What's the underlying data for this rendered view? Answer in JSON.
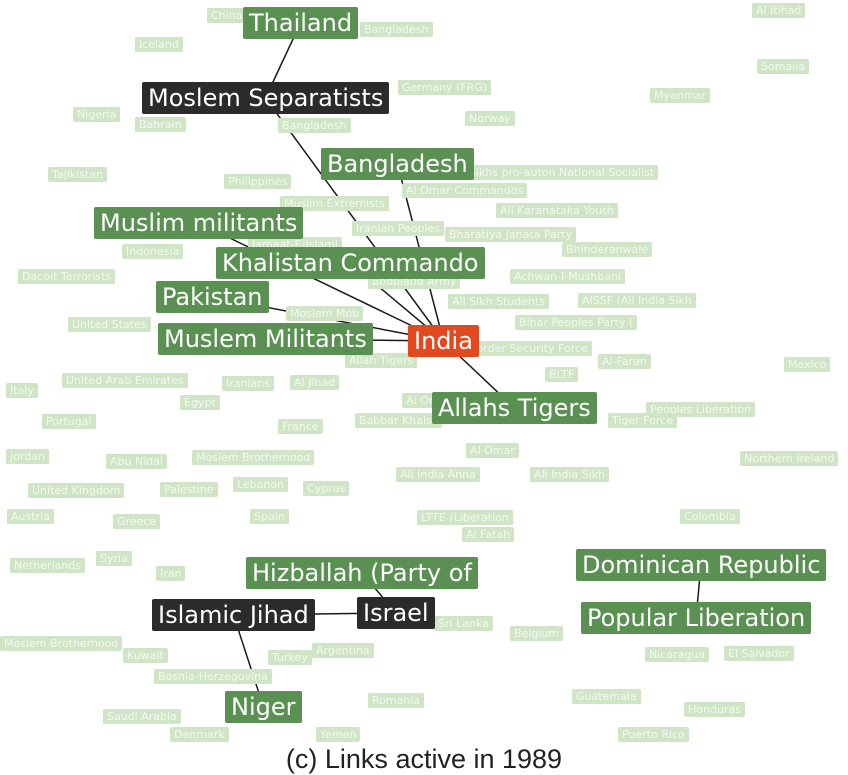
{
  "caption": "(c) Links active in 1989",
  "colors": {
    "active": "#5a9152",
    "faded": "#cfe5c5",
    "dark": "#2b2b2b",
    "focus": "#e2491f"
  },
  "faded_nodes": [
    {
      "id": "f1",
      "label": "China"
    },
    {
      "id": "f2",
      "label": "Bangladesh"
    },
    {
      "id": "f3",
      "label": "Al Itihad"
    },
    {
      "id": "f4",
      "label": "Iceland"
    },
    {
      "id": "f5",
      "label": "Somalia"
    },
    {
      "id": "f6",
      "label": "Germany (FRG)"
    },
    {
      "id": "f7",
      "label": "Myanmar"
    },
    {
      "id": "f8",
      "label": "Nigeria"
    },
    {
      "id": "f9",
      "label": "Bahrain"
    },
    {
      "id": "f10",
      "label": "Bangladesh"
    },
    {
      "id": "f11",
      "label": "Norway"
    },
    {
      "id": "f12",
      "label": "Tajikistan"
    },
    {
      "id": "f13",
      "label": "Philippines"
    },
    {
      "id": "f14",
      "label": "Sikhs pro-autonomy"
    },
    {
      "id": "f15",
      "label": "National Socialist"
    },
    {
      "id": "f16",
      "label": "Al Omar Commandos"
    },
    {
      "id": "f17",
      "label": "Muslim Extremists"
    },
    {
      "id": "f18",
      "label": "All Karanataka Youth"
    },
    {
      "id": "f19",
      "label": "Iranian Peoples"
    },
    {
      "id": "f20",
      "label": "Bharatiya Janata Party"
    },
    {
      "id": "f21",
      "label": "Jamaat-E-Islami"
    },
    {
      "id": "f22",
      "label": "Bhinderanwale"
    },
    {
      "id": "f23",
      "label": "Indonesia"
    },
    {
      "id": "f24",
      "label": "Dacoit Terrorists"
    },
    {
      "id": "f25",
      "label": "Bodoland Army"
    },
    {
      "id": "f26",
      "label": "Achwan-I-Mushbani"
    },
    {
      "id": "f27",
      "label": "All Sikh Students"
    },
    {
      "id": "f28",
      "label": "AISSF (All India Sikh"
    },
    {
      "id": "f29",
      "label": "Moslem Mob"
    },
    {
      "id": "f30",
      "label": "United States"
    },
    {
      "id": "f31",
      "label": "Bihar Peoples Party ("
    },
    {
      "id": "f32",
      "label": "Border Security Force"
    },
    {
      "id": "f33",
      "label": "Allah Tigers"
    },
    {
      "id": "f34",
      "label": "Al-Faran"
    },
    {
      "id": "f35",
      "label": "Mexico"
    },
    {
      "id": "f36",
      "label": "BLTF"
    },
    {
      "id": "f37",
      "label": "Italy"
    },
    {
      "id": "f38",
      "label": "United Arab Emirates"
    },
    {
      "id": "f39",
      "label": "Iranians"
    },
    {
      "id": "f40",
      "label": "Al Jihad"
    },
    {
      "id": "f41",
      "label": "Egypt"
    },
    {
      "id": "f42",
      "label": "Al Omar"
    },
    {
      "id": "f43",
      "label": "Peoples Liberation"
    },
    {
      "id": "f44",
      "label": "Portugal"
    },
    {
      "id": "f45",
      "label": "France"
    },
    {
      "id": "f46",
      "label": "Babbar Khalsa"
    },
    {
      "id": "f47",
      "label": "Tiger Force"
    },
    {
      "id": "f48",
      "label": "Jordan"
    },
    {
      "id": "f49",
      "label": "Al Omar"
    },
    {
      "id": "f50",
      "label": "Abu Nidal"
    },
    {
      "id": "f51",
      "label": "Moslem Brotherhood"
    },
    {
      "id": "f52",
      "label": "Northern Ireland"
    },
    {
      "id": "f53",
      "label": "All India Anna"
    },
    {
      "id": "f54",
      "label": "All India Sikh"
    },
    {
      "id": "f55",
      "label": "United Kingdom"
    },
    {
      "id": "f56",
      "label": "Palestine"
    },
    {
      "id": "f57",
      "label": "Lebanon"
    },
    {
      "id": "f58",
      "label": "Cyprus"
    },
    {
      "id": "f59",
      "label": "Austria"
    },
    {
      "id": "f60",
      "label": "Greece"
    },
    {
      "id": "f61",
      "label": "Spain"
    },
    {
      "id": "f62",
      "label": "LTTE (Liberation"
    },
    {
      "id": "f63",
      "label": "Colombia"
    },
    {
      "id": "f64",
      "label": "Al Fatah"
    },
    {
      "id": "f65",
      "label": "Netherlands"
    },
    {
      "id": "f66",
      "label": "Syria"
    },
    {
      "id": "f67",
      "label": "Iran"
    },
    {
      "id": "f68",
      "label": "Sri Lanka"
    },
    {
      "id": "f69",
      "label": "Belgium"
    },
    {
      "id": "f70",
      "label": "Moslem Brotherhood"
    },
    {
      "id": "f71",
      "label": "Kuwait"
    },
    {
      "id": "f72",
      "label": "Turkey"
    },
    {
      "id": "f73",
      "label": "Argentina"
    },
    {
      "id": "f74",
      "label": "Nicaragua"
    },
    {
      "id": "f75",
      "label": "El Salvador"
    },
    {
      "id": "f76",
      "label": "Bosnia-Herzegovina"
    },
    {
      "id": "f77",
      "label": "Romania"
    },
    {
      "id": "f78",
      "label": "Guatemala"
    },
    {
      "id": "f79",
      "label": "Honduras"
    },
    {
      "id": "f80",
      "label": "Saudi Arabia"
    },
    {
      "id": "f81",
      "label": "Denmark"
    },
    {
      "id": "f82",
      "label": "Yemen"
    },
    {
      "id": "f83",
      "label": "Puerto Rico"
    }
  ],
  "active_nodes": [
    {
      "id": "thailand",
      "label": "Thailand",
      "style": "active"
    },
    {
      "id": "moslem_sep",
      "label": "Moslem Separatists",
      "style": "dark"
    },
    {
      "id": "bangladesh",
      "label": "Bangladesh",
      "style": "active"
    },
    {
      "id": "muslim_mil",
      "label": "Muslim militants",
      "style": "active"
    },
    {
      "id": "khalistan",
      "label": "Khalistan Commando",
      "style": "active"
    },
    {
      "id": "pakistan",
      "label": "Pakistan",
      "style": "active"
    },
    {
      "id": "muslem_mil",
      "label": "Muslem Militants",
      "style": "active"
    },
    {
      "id": "india",
      "label": "India",
      "style": "focus"
    },
    {
      "id": "allahs",
      "label": "Allahs Tigers",
      "style": "active"
    },
    {
      "id": "hizballah",
      "label": "Hizballah (Party of",
      "style": "active"
    },
    {
      "id": "islamic_jihad",
      "label": "Islamic Jihad",
      "style": "dark"
    },
    {
      "id": "israel",
      "label": "Israel",
      "style": "dark"
    },
    {
      "id": "niger",
      "label": "Niger",
      "style": "active"
    },
    {
      "id": "dominican",
      "label": "Dominican Republic",
      "style": "active"
    },
    {
      "id": "popular_lib",
      "label": "Popular Liberation",
      "style": "active"
    }
  ],
  "links": [
    {
      "source": "thailand",
      "target": "moslem_sep"
    },
    {
      "source": "moslem_sep",
      "target": "india"
    },
    {
      "source": "bangladesh",
      "target": "india"
    },
    {
      "source": "muslim_mil",
      "target": "india"
    },
    {
      "source": "khalistan",
      "target": "india"
    },
    {
      "source": "pakistan",
      "target": "india"
    },
    {
      "source": "muslem_mil",
      "target": "india"
    },
    {
      "source": "india",
      "target": "allahs"
    },
    {
      "source": "hizballah",
      "target": "israel"
    },
    {
      "source": "islamic_jihad",
      "target": "israel"
    },
    {
      "source": "islamic_jihad",
      "target": "niger"
    },
    {
      "source": "dominican",
      "target": "popular_lib"
    }
  ]
}
